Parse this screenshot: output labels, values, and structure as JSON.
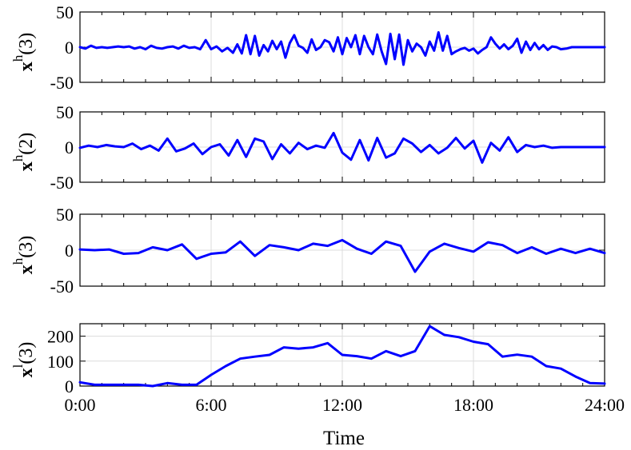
{
  "figure": {
    "xlabel": "Time",
    "x_tick_labels": [
      "0:00",
      "6:00",
      "12:00",
      "18:00",
      "24:00"
    ]
  },
  "colors": {
    "series": "#0000ff",
    "grid": "#dcdcdc"
  },
  "chart_data": [
    {
      "type": "line",
      "ylabel": {
        "main": "x",
        "sup": "h",
        "tail": "(3)"
      },
      "xlim": [
        0,
        24
      ],
      "ylim": [
        -50,
        50
      ],
      "yticks": [
        "50",
        "0",
        "-50"
      ],
      "grid": true,
      "x": [
        0,
        0.25,
        0.5,
        0.75,
        1,
        1.25,
        1.5,
        1.75,
        2,
        2.25,
        2.5,
        2.75,
        3,
        3.25,
        3.5,
        3.75,
        4,
        4.25,
        4.5,
        4.75,
        5,
        5.25,
        5.5,
        5.75,
        6,
        6.25,
        6.5,
        6.75,
        7,
        7.2,
        7.4,
        7.6,
        7.8,
        8,
        8.2,
        8.4,
        8.6,
        8.8,
        9,
        9.2,
        9.4,
        9.6,
        9.8,
        10,
        10.2,
        10.4,
        10.6,
        10.8,
        11,
        11.2,
        11.4,
        11.6,
        11.8,
        12,
        12.2,
        12.4,
        12.6,
        12.8,
        13,
        13.2,
        13.4,
        13.6,
        13.8,
        14,
        14.2,
        14.4,
        14.6,
        14.8,
        15,
        15.2,
        15.4,
        15.6,
        15.8,
        16,
        16.2,
        16.4,
        16.6,
        16.8,
        17,
        17.2,
        17.4,
        17.6,
        17.8,
        18,
        18.2,
        18.4,
        18.6,
        18.8,
        19,
        19.2,
        19.4,
        19.6,
        19.8,
        20,
        20.2,
        20.4,
        20.6,
        20.8,
        21,
        21.2,
        21.4,
        21.6,
        21.8,
        22,
        22.25,
        22.5,
        22.75,
        23,
        23.25,
        23.5,
        23.75,
        24
      ],
      "y": [
        0,
        -2,
        2,
        -1,
        0,
        -1,
        0,
        1,
        0,
        1,
        -2,
        0,
        -3,
        2,
        -1,
        -2,
        0,
        1,
        -2,
        2,
        -1,
        0,
        -3,
        10,
        -3,
        1,
        -6,
        -1,
        -8,
        4,
        -9,
        17,
        -10,
        16,
        -12,
        3,
        -6,
        9,
        -3,
        8,
        -15,
        6,
        17,
        2,
        -1,
        -8,
        11,
        -4,
        0,
        10,
        7,
        -6,
        14,
        -10,
        13,
        0,
        17,
        -10,
        16,
        0,
        -10,
        18,
        -6,
        -24,
        19,
        -17,
        18,
        -25,
        10,
        -6,
        5,
        0,
        -12,
        8,
        -5,
        21,
        -5,
        16,
        -10,
        -6,
        -3,
        -1,
        -5,
        -2,
        -9,
        -4,
        0,
        14,
        5,
        -2,
        4,
        -3,
        2,
        12,
        -8,
        8,
        -4,
        6,
        -3,
        3,
        -4,
        1,
        0,
        -3,
        -2,
        0,
        0,
        0,
        0,
        0,
        0,
        0
      ]
    },
    {
      "type": "line",
      "ylabel": {
        "main": "x",
        "sup": "h",
        "tail": "(2)"
      },
      "xlim": [
        0,
        24
      ],
      "ylim": [
        -50,
        50
      ],
      "yticks": [
        "50",
        "0",
        "-50"
      ],
      "grid": true,
      "x": [
        0,
        0.4,
        0.8,
        1.2,
        1.6,
        2,
        2.4,
        2.8,
        3.2,
        3.6,
        4,
        4.4,
        4.8,
        5.2,
        5.6,
        6,
        6.4,
        6.8,
        7.2,
        7.6,
        8,
        8.4,
        8.8,
        9.2,
        9.6,
        10,
        10.4,
        10.8,
        11.2,
        11.6,
        12,
        12.4,
        12.8,
        13.2,
        13.6,
        14,
        14.4,
        14.8,
        15.2,
        15.6,
        16,
        16.4,
        16.8,
        17.2,
        17.6,
        18,
        18.4,
        18.8,
        19.2,
        19.6,
        20,
        20.4,
        20.8,
        21.2,
        21.6,
        22,
        22.4,
        22.8,
        23.2,
        23.6,
        24
      ],
      "y": [
        -1,
        2,
        0,
        3,
        1,
        0,
        5,
        -3,
        2,
        -5,
        12,
        -6,
        -2,
        5,
        -10,
        0,
        4,
        -12,
        10,
        -14,
        12,
        8,
        -17,
        4,
        -9,
        6,
        -3,
        2,
        -1,
        20,
        -8,
        -18,
        10,
        -19,
        13,
        -15,
        -9,
        12,
        5,
        -7,
        3,
        -9,
        -1,
        13,
        -2,
        9,
        -22,
        6,
        -5,
        14,
        -7,
        3,
        0,
        2,
        -1,
        0,
        0,
        0,
        0,
        0,
        0
      ]
    },
    {
      "type": "line",
      "ylabel": {
        "main": "x",
        "sup": "h",
        "tail": "(3)"
      },
      "xlim": [
        0,
        24
      ],
      "ylim": [
        -50,
        50
      ],
      "yticks": [
        "50",
        "0",
        "-50"
      ],
      "grid": true,
      "x": [
        0,
        0.67,
        1.33,
        2,
        2.67,
        3.33,
        4,
        4.67,
        5.33,
        6,
        6.67,
        7.33,
        8,
        8.67,
        9.33,
        10,
        10.67,
        11.33,
        12,
        12.67,
        13.33,
        14,
        14.67,
        15.33,
        16,
        16.67,
        17.33,
        18,
        18.67,
        19.33,
        20,
        20.67,
        21.33,
        22,
        22.67,
        23.33,
        24
      ],
      "y": [
        1,
        0,
        1,
        -5,
        -4,
        4,
        0,
        8,
        -12,
        -5,
        -3,
        12,
        -8,
        7,
        4,
        0,
        9,
        6,
        14,
        2,
        -5,
        12,
        6,
        -30,
        -2,
        9,
        3,
        -2,
        11,
        7,
        -4,
        4,
        -5,
        2,
        -4,
        2,
        -4
      ]
    },
    {
      "type": "line",
      "ylabel": {
        "main": "x",
        "sup": "l",
        "tail": "(3)"
      },
      "xlim": [
        0,
        24
      ],
      "ylim": [
        0,
        250
      ],
      "yticks": [
        "200",
        "100",
        "0"
      ],
      "grid": true,
      "x": [
        0,
        0.67,
        1.33,
        2,
        2.67,
        3.33,
        4,
        4.67,
        5.33,
        6,
        6.67,
        7.33,
        8,
        8.67,
        9.33,
        10,
        10.67,
        11.33,
        12,
        12.67,
        13.33,
        14,
        14.67,
        15.33,
        16,
        16.67,
        17.33,
        18,
        18.67,
        19.33,
        20,
        20.67,
        21.33,
        22,
        22.67,
        23.33,
        24
      ],
      "y": [
        15,
        5,
        5,
        5,
        5,
        0,
        12,
        5,
        5,
        45,
        80,
        110,
        118,
        125,
        155,
        150,
        155,
        172,
        125,
        120,
        110,
        140,
        120,
        140,
        240,
        205,
        196,
        178,
        168,
        118,
        126,
        118,
        80,
        70,
        38,
        12,
        10
      ]
    }
  ]
}
